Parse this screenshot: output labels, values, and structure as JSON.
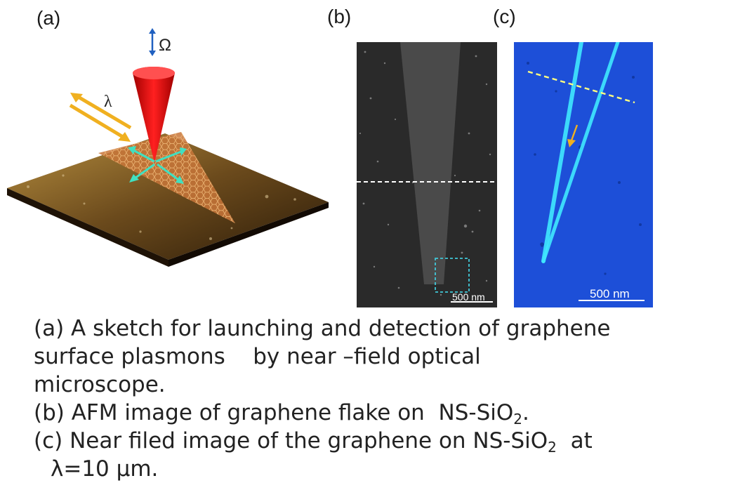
{
  "panels": {
    "a": {
      "label": "(a)",
      "omega": "Ω",
      "lambda": "λ"
    },
    "b": {
      "label": "(b)",
      "scale": "500 nm"
    },
    "c": {
      "label": "(c)",
      "scale": "500 nm"
    }
  },
  "caption": {
    "line1": "(a) A sketch for launching and detection of graphene",
    "line2": "surface plasmons    by near –field optical",
    "line3": "microscope.",
    "b_text": "(b) AFM image of graphene flake on  NS-SiO",
    "b_sub": "2",
    "b_end": ".",
    "c_text": "(c) Near filed image of the graphene on NS-SiO",
    "c_sub": "2",
    "c_end": "  at",
    "c_line2": "λ=10 µm."
  },
  "colors": {
    "tip": "#e01010",
    "laser": "#f0b020",
    "arrows": "#40e0c0",
    "afm_bg": "#2a2a2a",
    "near_field_bg": "#1d4fd8",
    "graphene_edge": "#40e8ff",
    "dash_b": "#ffffff",
    "dash_c": "#ffff80",
    "marker_box": "#40c8d8"
  }
}
